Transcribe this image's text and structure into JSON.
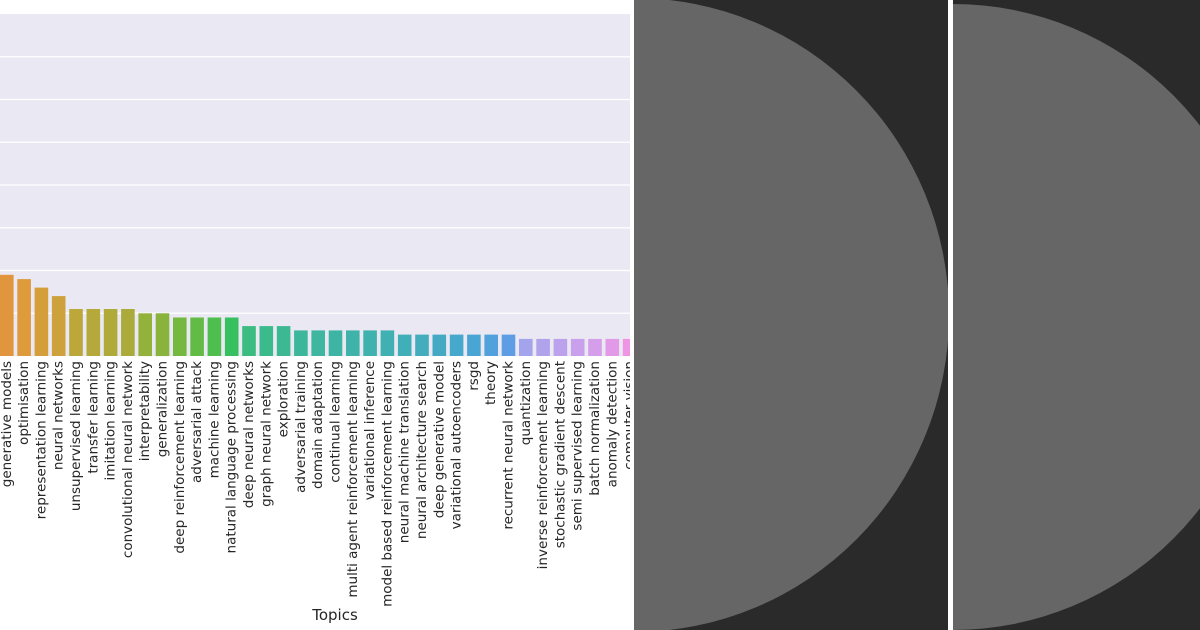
{
  "chart_data": {
    "type": "bar",
    "xlabel": "Topics",
    "ylabel": "",
    "ylim": [
      0,
      80
    ],
    "grid": true,
    "categories": [
      "generative models",
      "optimisation",
      "representation learning",
      "neural networks",
      "unsupervised learning",
      "transfer learning",
      "imitation learning",
      "convolutional neural network",
      "interpretability",
      "generalization",
      "deep reinforcement learning",
      "adversarial attack",
      "machine learning",
      "natural language processing",
      "deep neural networks",
      "graph neural network",
      "exploration",
      "adversarial training",
      "domain adaptation",
      "continual learning",
      "multi agent reinforcement learning",
      "variational inference",
      "model based reinforcement learning",
      "neural machine translation",
      "neural architecture search",
      "deep generative model",
      "variational autoencoders",
      "rsgd",
      "theory",
      "recurrent neural network",
      "quantization",
      "inverse reinforcement learning",
      "stochastic gradient descent",
      "semi supervised learning",
      "batch normalization",
      "anomaly detection",
      "computer vision"
    ],
    "values": [
      19,
      18,
      16,
      14,
      11,
      11,
      11,
      11,
      10,
      10,
      9,
      9,
      9,
      9,
      7,
      7,
      7,
      6,
      6,
      6,
      6,
      6,
      6,
      5,
      5,
      5,
      5,
      5,
      5,
      5,
      4,
      4,
      4,
      4,
      4,
      4,
      4
    ],
    "colors": [
      "#e1953d",
      "#dd9b3c",
      "#d49f3b",
      "#cda13b",
      "#bca73b",
      "#b6a93b",
      "#b0aa3b",
      "#aaab3b",
      "#93b23b",
      "#89b33c",
      "#75b83f",
      "#62bb45",
      "#4ebe4f",
      "#36c060",
      "#3bbc80",
      "#3bba8b",
      "#3cb993",
      "#3db79b",
      "#3eb6a0",
      "#3eb5a4",
      "#3fb3a9",
      "#3fb2ad",
      "#40b0b2",
      "#41afb7",
      "#43adbd",
      "#44aac4",
      "#46a8cb",
      "#49a5d4",
      "#52a1dc",
      "#5e9ce3",
      "#a3a4ec",
      "#b0a3ec",
      "#bca2ec",
      "#c9a0eb",
      "#d59eea",
      "#e29ae8",
      "#ee96e4"
    ]
  }
}
